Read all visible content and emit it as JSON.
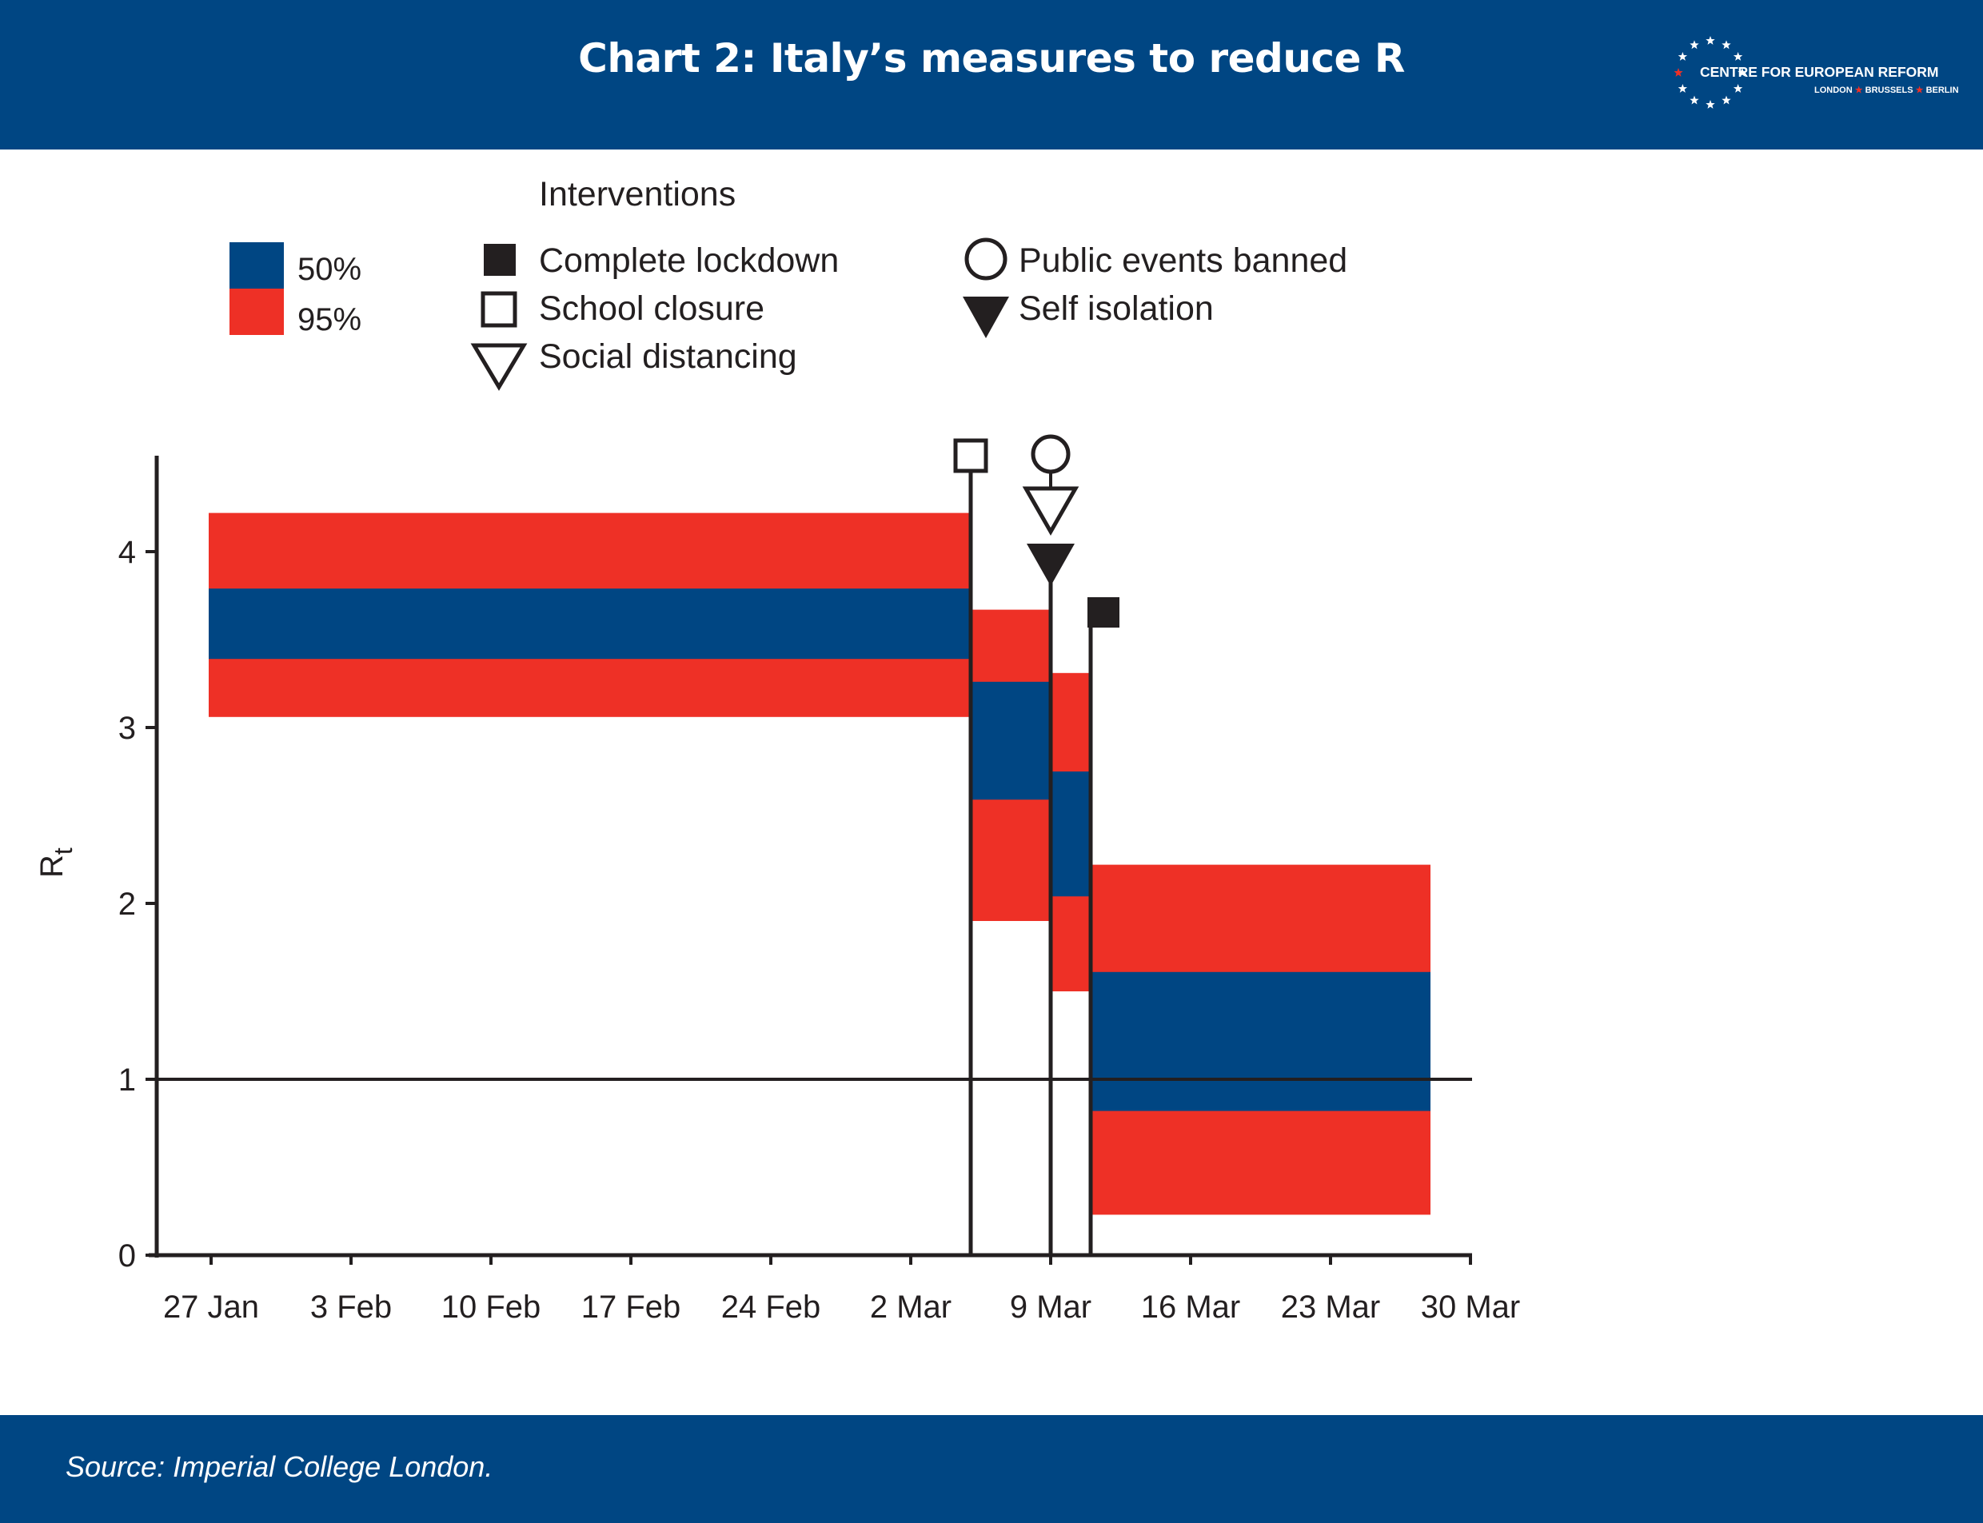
{
  "header": {
    "title": "Chart 2: Italy’s measures to reduce R",
    "logo": {
      "name": "CENTRE FOR EUROPEAN REFORM",
      "cities": [
        "LONDON",
        "BRUSSELS",
        "BERLIN"
      ]
    }
  },
  "footer": {
    "source": "Source: Imperial College London."
  },
  "legend": {
    "bands": [
      {
        "label": "50%",
        "color": "#004683"
      },
      {
        "label": "95%",
        "color": "#ee3026"
      }
    ],
    "interventions_title": "Interventions",
    "interventions": [
      {
        "label": "Complete lockdown",
        "icon": "filled-square-icon"
      },
      {
        "label": "School closure",
        "icon": "open-square-icon"
      },
      {
        "label": "Social distancing",
        "icon": "open-down-triangle-icon"
      },
      {
        "label": "Public events banned",
        "icon": "open-circle-icon"
      },
      {
        "label": "Self isolation",
        "icon": "filled-down-triangle-icon"
      }
    ]
  },
  "chart_data": {
    "type": "area",
    "title": "Chart 2: Italy’s measures to reduce R",
    "ylabel": "R",
    "ylabel_subscript": "t",
    "xlabel": "",
    "ylim": [
      0,
      4.5
    ],
    "yticks": [
      0,
      1,
      2,
      3,
      4
    ],
    "ytick_labels": [
      "0",
      "1",
      "2",
      "3",
      "4"
    ],
    "xlim": [
      "2020-01-26",
      "2020-03-30"
    ],
    "xticks": [
      "2020-01-27",
      "2020-02-03",
      "2020-02-10",
      "2020-02-17",
      "2020-02-24",
      "2020-03-02",
      "2020-03-09",
      "2020-03-16",
      "2020-03-23",
      "2020-03-30"
    ],
    "xtick_labels": [
      "27 Jan",
      "3 Feb",
      "10 Feb",
      "17 Feb",
      "24 Feb",
      "2 Mar",
      "9 Mar",
      "16 Mar",
      "23 Mar",
      "30 Mar"
    ],
    "reference_line": 1,
    "series": [
      {
        "name": "95%",
        "color": "#ee3026"
      },
      {
        "name": "50%",
        "color": "#004683"
      }
    ],
    "periods": [
      {
        "start": "2020-01-27",
        "end": "2020-03-05",
        "ci95": [
          3.06,
          4.22
        ],
        "ci50": [
          3.39,
          3.79
        ]
      },
      {
        "start": "2020-03-05",
        "end": "2020-03-09",
        "ci95": [
          1.9,
          3.67
        ],
        "ci50": [
          2.59,
          3.26
        ]
      },
      {
        "start": "2020-03-09",
        "end": "2020-03-11",
        "ci95": [
          1.5,
          3.31
        ],
        "ci50": [
          2.04,
          2.75
        ]
      },
      {
        "start": "2020-03-11",
        "end": "2020-03-28",
        "ci95": [
          0.23,
          2.22
        ],
        "ci50": [
          0.82,
          1.61
        ]
      }
    ],
    "interventions": [
      {
        "date": "2020-03-05",
        "markers": [
          "open-square-icon"
        ]
      },
      {
        "date": "2020-03-09",
        "markers": [
          "open-circle-icon",
          "open-down-triangle-icon",
          "filled-down-triangle-icon"
        ]
      },
      {
        "date": "2020-03-11",
        "markers": [
          "filled-square-icon"
        ]
      }
    ],
    "grid": false
  }
}
